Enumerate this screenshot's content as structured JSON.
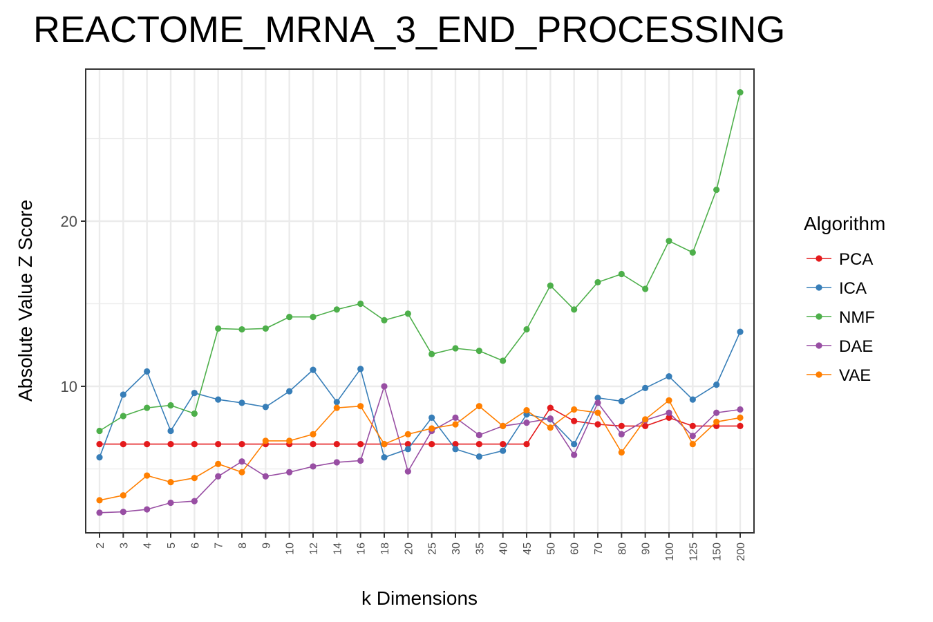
{
  "chart_data": {
    "type": "line",
    "title": "REACTOME_MRNA_3_END_PROCESSING",
    "xlabel": "k Dimensions",
    "ylabel": "Absolute Value Z Score",
    "categories": [
      "2",
      "3",
      "4",
      "5",
      "6",
      "7",
      "8",
      "9",
      "10",
      "12",
      "14",
      "16",
      "18",
      "20",
      "25",
      "30",
      "35",
      "40",
      "45",
      "50",
      "60",
      "70",
      "80",
      "90",
      "100",
      "125",
      "150",
      "200"
    ],
    "ylim": [
      2.0,
      29.0
    ],
    "yticks": [
      10,
      20
    ],
    "grid": true,
    "legend": {
      "title": "Algorithm",
      "position": "right"
    },
    "series": [
      {
        "name": "PCA",
        "color": "#e41a1c",
        "values": [
          6.5,
          6.5,
          6.5,
          6.5,
          6.5,
          6.5,
          6.5,
          6.5,
          6.5,
          6.5,
          6.5,
          6.5,
          6.5,
          6.5,
          6.5,
          6.5,
          6.5,
          6.5,
          6.5,
          8.7,
          7.9,
          7.7,
          7.6,
          7.6,
          8.1,
          7.6,
          7.6,
          7.6
        ]
      },
      {
        "name": "ICA",
        "color": "#377eb8",
        "values": [
          5.7,
          9.5,
          10.9,
          7.3,
          9.6,
          9.2,
          9.0,
          8.75,
          9.7,
          11.0,
          9.05,
          11.05,
          5.7,
          6.2,
          8.1,
          6.2,
          5.75,
          6.1,
          8.3,
          8.0,
          6.5,
          9.3,
          9.1,
          9.9,
          10.6,
          9.2,
          10.1,
          13.3
        ]
      },
      {
        "name": "NMF",
        "color": "#4daf4a",
        "values": [
          7.3,
          8.2,
          8.7,
          8.85,
          8.35,
          13.5,
          13.45,
          13.5,
          14.2,
          14.2,
          14.65,
          15.0,
          14.0,
          14.4,
          11.95,
          12.3,
          12.15,
          11.55,
          13.45,
          16.1,
          14.65,
          16.3,
          16.8,
          15.9,
          18.8,
          18.1,
          21.9,
          27.8
        ]
      },
      {
        "name": "DAE",
        "color": "#984ea3",
        "values": [
          2.35,
          2.4,
          2.55,
          2.95,
          3.05,
          4.55,
          5.45,
          4.55,
          4.8,
          5.15,
          5.4,
          5.5,
          10.0,
          4.85,
          7.3,
          8.1,
          7.05,
          7.6,
          7.8,
          8.05,
          5.85,
          9.0,
          7.1,
          7.95,
          8.4,
          7.0,
          8.4,
          8.6
        ]
      },
      {
        "name": "VAE",
        "color": "#ff7f00",
        "values": [
          3.1,
          3.4,
          4.6,
          4.2,
          4.45,
          5.3,
          4.8,
          6.7,
          6.7,
          7.1,
          8.7,
          8.8,
          6.5,
          7.1,
          7.45,
          7.7,
          8.8,
          7.6,
          8.55,
          7.5,
          8.6,
          8.4,
          6.0,
          8.0,
          9.15,
          6.5,
          7.85,
          8.1
        ]
      }
    ]
  }
}
